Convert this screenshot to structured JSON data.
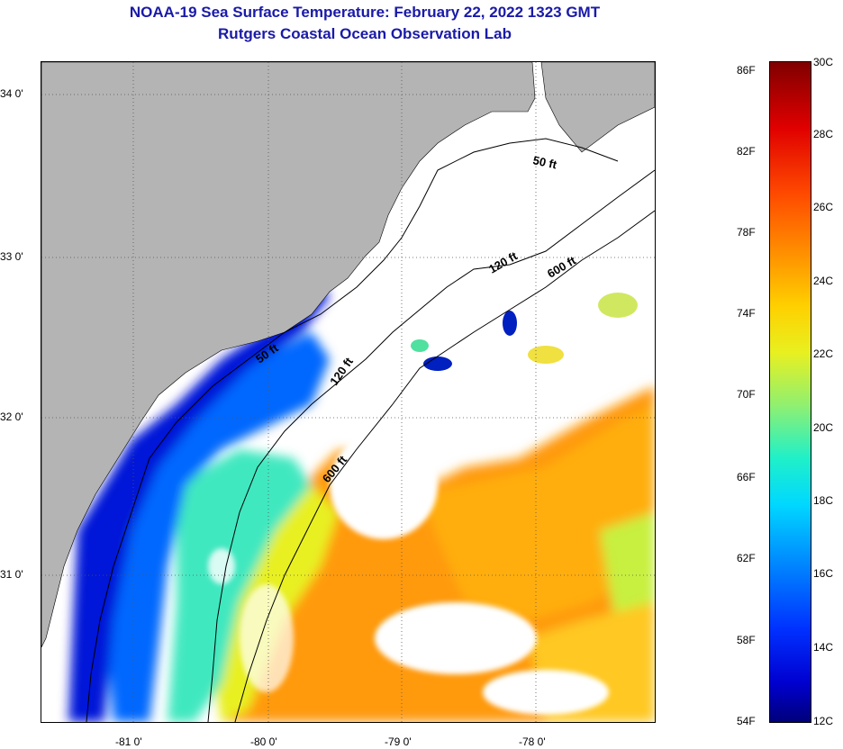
{
  "title": "NOAA-19 Sea Surface Temperature:  February 22, 2022 1323 GMT",
  "subtitle": "Rutgers Coastal Ocean Observation Lab",
  "lat_labels": [
    "34 0'",
    "33 0'",
    "32 0'",
    "31 0'"
  ],
  "lon_labels": [
    "-81 0'",
    "-80 0'",
    "-79 0'",
    "-78 0'"
  ],
  "contour_labels": [
    "50 ft",
    "120 ft",
    "600 ft",
    "50 ft",
    "120 ft",
    "600 ft"
  ],
  "colorbar": {
    "fahrenheit": [
      "86F",
      "82F",
      "78F",
      "74F",
      "70F",
      "66F",
      "62F",
      "58F",
      "54F"
    ],
    "celsius": [
      "30C",
      "28C",
      "26C",
      "24C",
      "22C",
      "20C",
      "18C",
      "16C",
      "14C",
      "12C"
    ],
    "colors": [
      "#00007a",
      "#0030ff",
      "#00d8ff",
      "#90f070",
      "#ffd000",
      "#ff4a00",
      "#800000"
    ]
  },
  "colors": {
    "land": "#b4b4b4",
    "title": "#1a1aa8",
    "cloud": "#ffffff"
  }
}
